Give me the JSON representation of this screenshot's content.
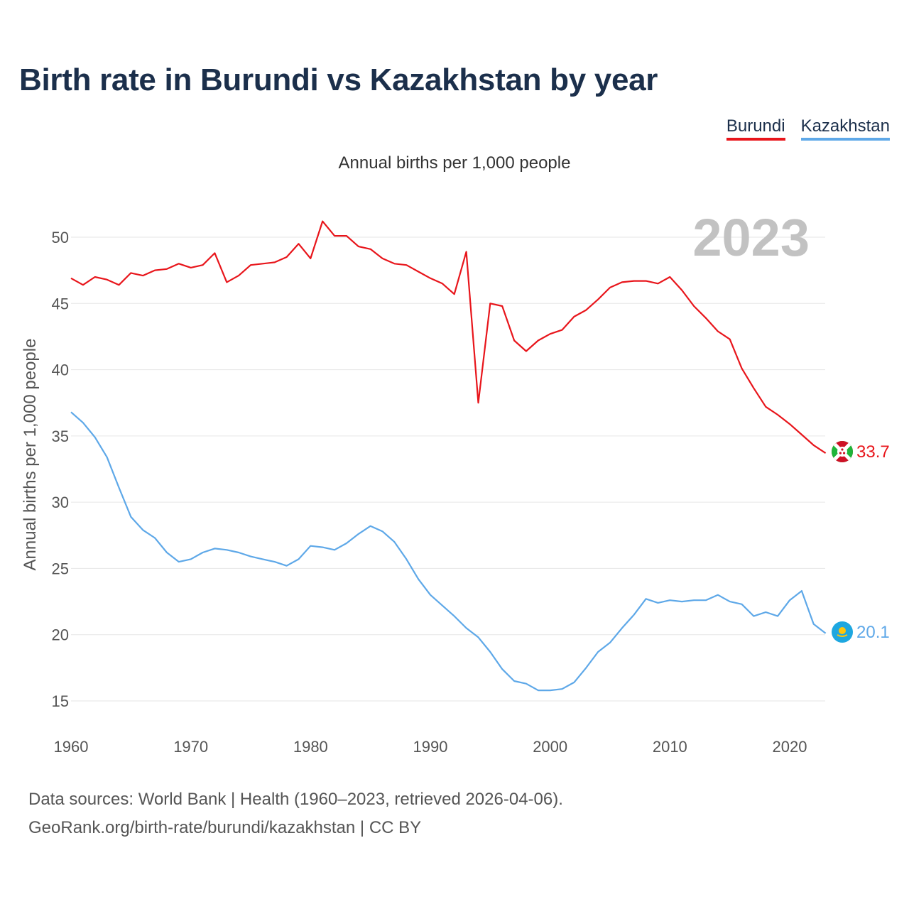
{
  "page": {
    "title": "Birth rate in Burundi vs Kazakhstan by year",
    "subtitle": "Annual births per 1,000 people",
    "source_line1": "Data sources: World Bank | Health (1960–2023, retrieved 2026-04-06).",
    "source_line2": "GeoRank.org/birth-rate/burundi/kazakhstan | CC BY"
  },
  "legend": [
    {
      "label": "Burundi",
      "color": "#e8151b"
    },
    {
      "label": "Kazakhstan",
      "color": "#5ea8e8"
    }
  ],
  "chart_data": {
    "type": "line",
    "title": "Birth rate in Burundi vs Kazakhstan by year",
    "subtitle": "Annual births per 1,000 people",
    "xlabel": "",
    "ylabel": "Annual births per 1,000 people",
    "xlim": [
      1960,
      2023
    ],
    "ylim": [
      13.8,
      54
    ],
    "xticks": [
      1960,
      1970,
      1980,
      1990,
      2000,
      2010,
      2020
    ],
    "yticks": [
      15,
      20,
      25,
      30,
      35,
      40,
      45,
      50
    ],
    "grid": true,
    "year_watermark": "2023",
    "x": [
      1960,
      1961,
      1962,
      1963,
      1964,
      1965,
      1966,
      1967,
      1968,
      1969,
      1970,
      1971,
      1972,
      1973,
      1974,
      1975,
      1976,
      1977,
      1978,
      1979,
      1980,
      1981,
      1982,
      1983,
      1984,
      1985,
      1986,
      1987,
      1988,
      1989,
      1990,
      1991,
      1992,
      1993,
      1994,
      1995,
      1996,
      1997,
      1998,
      1999,
      2000,
      2001,
      2002,
      2003,
      2004,
      2005,
      2006,
      2007,
      2008,
      2009,
      2010,
      2011,
      2012,
      2013,
      2014,
      2015,
      2016,
      2017,
      2018,
      2019,
      2020,
      2021,
      2022,
      2023
    ],
    "series": [
      {
        "name": "Burundi",
        "color": "#e8151b",
        "end_label": "33.7",
        "values": [
          46.9,
          46.4,
          47.0,
          46.8,
          46.4,
          47.3,
          47.1,
          47.5,
          47.6,
          48.0,
          47.7,
          47.9,
          48.8,
          46.6,
          47.1,
          47.9,
          48.0,
          48.1,
          48.5,
          49.5,
          48.4,
          51.2,
          50.1,
          50.1,
          49.3,
          49.1,
          48.4,
          48.0,
          47.9,
          47.4,
          46.9,
          46.5,
          45.7,
          48.9,
          37.5,
          45.0,
          44.8,
          42.2,
          41.4,
          42.2,
          42.7,
          43.0,
          44.0,
          44.5,
          45.3,
          46.2,
          46.6,
          46.7,
          46.7,
          46.5,
          47.0,
          46.0,
          44.8,
          43.9,
          42.9,
          42.3,
          40.1,
          38.6,
          37.2,
          36.6,
          35.9,
          35.1,
          34.3,
          33.7
        ]
      },
      {
        "name": "Kazakhstan",
        "color": "#5ea8e8",
        "end_label": "20.1",
        "values": [
          36.8,
          36.0,
          34.9,
          33.4,
          31.1,
          28.9,
          27.9,
          27.3,
          26.2,
          25.5,
          25.7,
          26.2,
          26.5,
          26.4,
          26.2,
          25.9,
          25.7,
          25.5,
          25.2,
          25.7,
          26.7,
          26.6,
          26.4,
          26.9,
          27.6,
          28.2,
          27.8,
          27.0,
          25.7,
          24.2,
          23.0,
          22.2,
          21.4,
          20.5,
          19.8,
          18.7,
          17.4,
          16.5,
          16.3,
          15.8,
          15.8,
          15.9,
          16.4,
          17.5,
          18.7,
          19.4,
          20.5,
          21.5,
          22.7,
          22.4,
          22.6,
          22.5,
          22.6,
          22.6,
          23.0,
          22.5,
          22.3,
          21.4,
          21.7,
          21.4,
          22.6,
          23.3,
          20.8,
          20.1
        ]
      }
    ]
  }
}
